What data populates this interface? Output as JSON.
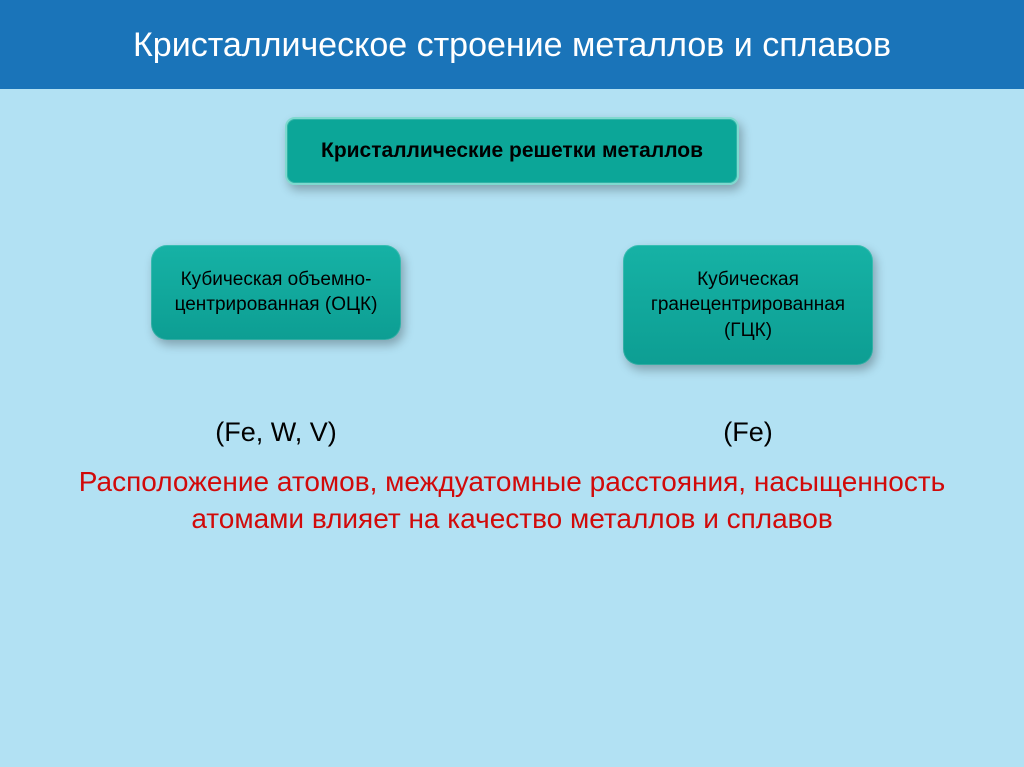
{
  "colors": {
    "header_bg": "#1a74b9",
    "header_text": "#ffffff",
    "body_bg": "#b2e1f3",
    "top_box_bg": "#0ca698",
    "top_box_border": "#7fd9cf",
    "top_box_text": "#000000",
    "card_bg": "#0d9e93",
    "card_text": "#000000",
    "elem_label_text": "#000000",
    "bottom_text": "#d10a0a"
  },
  "header": {
    "title": "Кристаллическое строение металлов и сплавов"
  },
  "top_box": {
    "label": "Кристаллические  решетки металлов"
  },
  "cards": {
    "left": {
      "text": "Кубическая объемно-центрированная (ОЦК)"
    },
    "right": {
      "text": "Кубическая гранецентрированная (ГЦК)"
    }
  },
  "elem_labels": {
    "left": "(Fe, W, V)",
    "right": "(Fe)"
  },
  "bottom_text": "Расположение атомов, междуатомные расстояния, насыщенность атомами влияет на качество металлов и сплавов"
}
